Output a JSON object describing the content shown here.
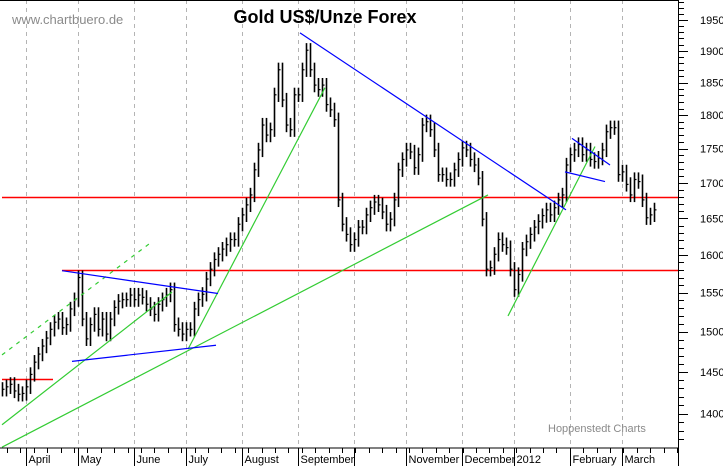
{
  "chart_data": {
    "type": "ohlc-bar",
    "title": "Gold US$/Unze Forex",
    "watermark": "www.chartbuero.de",
    "source": "Hoppenstedt Charts",
    "y_scale": "log",
    "ylim": [
      1361,
      1983
    ],
    "y_ticks": [
      1400,
      1450,
      1500,
      1550,
      1600,
      1650,
      1700,
      1750,
      1800,
      1850,
      1900,
      1950
    ],
    "x_labels": [
      {
        "label": "April",
        "index": 6
      },
      {
        "label": "May",
        "index": 19
      },
      {
        "label": "June",
        "index": 33
      },
      {
        "label": "July",
        "index": 46
      },
      {
        "label": "August",
        "index": 60
      },
      {
        "label": "September",
        "index": 74
      },
      {
        "label": "",
        "index": 88
      },
      {
        "label": "November",
        "index": 101
      },
      {
        "label": "December",
        "index": 115
      },
      {
        "label": "2012",
        "index": 128
      },
      {
        "label": "February",
        "index": 142
      },
      {
        "label": "March",
        "index": 155
      }
    ],
    "close": [
      1429,
      1432,
      1435,
      1427,
      1423,
      1424,
      1432,
      1447,
      1462,
      1472,
      1482,
      1492,
      1503,
      1512,
      1516,
      1505,
      1509,
      1529,
      1541,
      1570,
      1516,
      1491,
      1509,
      1522,
      1503,
      1516,
      1497,
      1516,
      1531,
      1539,
      1541,
      1541,
      1547,
      1541,
      1547,
      1544,
      1535,
      1529,
      1522,
      1535,
      1541,
      1547,
      1554,
      1509,
      1503,
      1497,
      1503,
      1503,
      1529,
      1541,
      1548,
      1568,
      1581,
      1594,
      1601,
      1608,
      1614,
      1621,
      1621,
      1642,
      1655,
      1669,
      1683,
      1719,
      1748,
      1785,
      1770,
      1778,
      1831,
      1870,
      1823,
      1785,
      1778,
      1831,
      1831,
      1870,
      1901,
      1870,
      1846,
      1839,
      1846,
      1816,
      1808,
      1793,
      1676,
      1642,
      1628,
      1614,
      1621,
      1638,
      1638,
      1655,
      1665,
      1673,
      1669,
      1659,
      1642,
      1649,
      1676,
      1719,
      1734,
      1748,
      1745,
      1722,
      1741,
      1785,
      1790,
      1778,
      1748,
      1712,
      1712,
      1705,
      1705,
      1719,
      1734,
      1751,
      1748,
      1734,
      1726,
      1707,
      1649,
      1581,
      1583,
      1601,
      1621,
      1614,
      1610,
      1581,
      1554,
      1574,
      1608,
      1618,
      1628,
      1638,
      1646,
      1654,
      1662,
      1655,
      1665,
      1676,
      1683,
      1726,
      1741,
      1748,
      1756,
      1741,
      1748,
      1734,
      1731,
      1736,
      1748,
      1775,
      1781,
      1781,
      1712,
      1716,
      1698,
      1683,
      1705,
      1702,
      1676,
      1651,
      1655,
      1662
    ],
    "horizontal_lines": [
      {
        "price": 1680,
        "from_index": 0,
        "color": "#ff0000"
      },
      {
        "price": 1580,
        "from_index": 15,
        "color": "#ff0000"
      },
      {
        "price": 1442,
        "from_index": 0,
        "to_index": 12.75,
        "color": "#ff0000"
      }
    ],
    "trend_lines": [
      {
        "from": [
          0,
          1361
        ],
        "to": [
          121.5,
          1683
        ],
        "color": "#33cc33",
        "style": "solid"
      },
      {
        "from": [
          0,
          1387
        ],
        "to": [
          42.5,
          1551
        ],
        "color": "#33cc33",
        "style": "solid"
      },
      {
        "from": [
          46.5,
          1478
        ],
        "to": [
          80.75,
          1842
        ],
        "color": "#33cc33",
        "style": "solid"
      },
      {
        "from": [
          0,
          1471
        ],
        "to": [
          37.5,
          1618
        ],
        "color": "#33cc33",
        "style": "dashed"
      },
      {
        "from": [
          126.5,
          1520
        ],
        "to": [
          148.25,
          1753
        ],
        "color": "#33cc33",
        "style": "solid"
      },
      {
        "from": [
          15,
          1579
        ],
        "to": [
          54,
          1549
        ],
        "color": "#0000ff",
        "style": "solid"
      },
      {
        "from": [
          17.5,
          1463
        ],
        "to": [
          53.5,
          1483
        ],
        "color": "#0000ff",
        "style": "solid"
      },
      {
        "from": [
          74.5,
          1929
        ],
        "to": [
          141,
          1662
        ],
        "color": "#0000ff",
        "style": "solid"
      },
      {
        "from": [
          142.5,
          1765
        ],
        "to": [
          152,
          1726
        ],
        "color": "#0000ff",
        "style": "solid"
      },
      {
        "from": [
          140.75,
          1716
        ],
        "to": [
          150.75,
          1702
        ],
        "color": "#0000ff",
        "style": "solid"
      }
    ],
    "grid": "vertical-dashed"
  }
}
